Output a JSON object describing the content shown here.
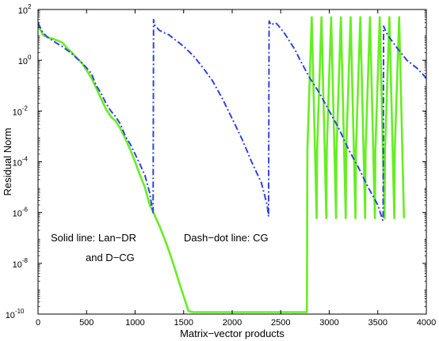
{
  "chart_data": {
    "type": "line",
    "xlabel": "Matrix−vector products",
    "ylabel": "Residual Norm",
    "xlim": [
      0,
      4000
    ],
    "ylim": [
      1e-10,
      100
    ],
    "yscale": "log",
    "grid": false,
    "x_ticks": [
      "0",
      "500",
      "1000",
      "1500",
      "2000",
      "2500",
      "3000",
      "3500",
      "4000"
    ],
    "y_ticks": [
      {
        "base": "10",
        "exp": "2"
      },
      {
        "base": "10",
        "exp": "0"
      },
      {
        "base": "10",
        "exp": "-2"
      },
      {
        "base": "10",
        "exp": "-4"
      },
      {
        "base": "10",
        "exp": "-6"
      },
      {
        "base": "10",
        "exp": "-8"
      },
      {
        "base": "10",
        "exp": "-10"
      }
    ],
    "annotations": [
      {
        "id": "solid",
        "lines": [
          "Solid line: Lan−DR",
          "and D−CG"
        ]
      },
      {
        "id": "dashdot",
        "lines": [
          "Dash−dot line: CG"
        ]
      }
    ],
    "series": [
      {
        "style": "solid",
        "color": "#66ee22",
        "x": [
          0,
          50,
          100,
          150,
          200,
          250,
          300,
          350,
          400,
          450,
          500,
          550,
          600,
          650,
          700,
          750,
          800,
          850,
          900,
          950,
          1000,
          1050,
          1100,
          1150,
          1200,
          1250,
          1300,
          1350,
          1400,
          1450,
          1500,
          1550,
          1600,
          1700,
          1800,
          1900,
          2000,
          2100,
          2200,
          2300,
          2400,
          2500,
          2600,
          2700,
          2770,
          2775,
          2820,
          2870,
          2875,
          2920,
          2970,
          2975,
          3020,
          3070,
          3075,
          3120,
          3170,
          3175,
          3220,
          3270,
          3275,
          3320,
          3370,
          3375,
          3420,
          3470,
          3475,
          3520,
          3570,
          3575,
          3620,
          3670,
          3675,
          3720,
          3770
        ],
        "y": [
          25,
          10,
          8,
          7,
          6,
          5,
          3,
          2,
          1.2,
          0.8,
          0.4,
          0.2,
          0.08,
          0.03,
          0.012,
          0.006,
          0.004,
          0.002,
          0.0008,
          0.0003,
          0.0001,
          3e-05,
          1e-05,
          2e-06,
          8e-07,
          3e-07,
          1e-07,
          3e-08,
          8e-09,
          2e-09,
          5e-10,
          1.3e-10,
          1.2e-10,
          1.2e-10,
          1.2e-10,
          1.2e-10,
          1.2e-10,
          1.2e-10,
          1.2e-10,
          1.2e-10,
          1.2e-10,
          1.2e-10,
          1.2e-10,
          1.2e-10,
          1.2e-10,
          0.0003,
          50,
          6e-07,
          0.0003,
          50,
          6e-07,
          0.0003,
          50,
          6e-07,
          0.0003,
          50,
          6e-07,
          0.0003,
          50,
          6e-07,
          0.0003,
          50,
          6e-07,
          0.0003,
          50,
          6e-07,
          0.0003,
          50,
          6e-07,
          0.0003,
          50,
          6e-07,
          0.0003,
          50,
          6e-07
        ]
      },
      {
        "style": "dashdot",
        "color": "#3344dd",
        "x": [
          0,
          50,
          100,
          150,
          200,
          250,
          300,
          350,
          400,
          450,
          500,
          550,
          600,
          650,
          700,
          750,
          800,
          850,
          900,
          950,
          1000,
          1050,
          1100,
          1150,
          1170,
          1185,
          1190,
          1200,
          1250,
          1300,
          1350,
          1400,
          1450,
          1500,
          1600,
          1700,
          1800,
          1900,
          2000,
          2100,
          2200,
          2300,
          2360,
          2375,
          2380,
          2400,
          2450,
          2500,
          2550,
          2600,
          2650,
          2700,
          2800,
          2900,
          3000,
          3100,
          3200,
          3300,
          3400,
          3500,
          3550,
          3555,
          3560,
          3600,
          3700,
          3800,
          3900,
          4000
        ],
        "y": [
          30,
          12,
          8,
          6,
          4.5,
          3.5,
          2.5,
          1.8,
          1.2,
          0.8,
          0.5,
          0.3,
          0.1,
          0.05,
          0.02,
          0.01,
          0.006,
          0.003,
          0.001,
          0.0005,
          0.0002,
          8e-05,
          3e-05,
          6e-06,
          2e-06,
          1e-06,
          40,
          25,
          15,
          12,
          10,
          7,
          5,
          3.5,
          1.5,
          0.5,
          0.15,
          0.03,
          0.005,
          0.0008,
          0.0001,
          1.5e-05,
          2e-06,
          7e-07,
          35,
          25,
          30,
          18,
          10,
          5,
          2.5,
          1,
          0.2,
          0.05,
          0.01,
          0.002,
          0.0003,
          6e-05,
          1e-05,
          2e-06,
          5e-07,
          6e-07,
          22,
          10,
          3,
          1,
          0.5,
          0.2
        ]
      }
    ]
  }
}
